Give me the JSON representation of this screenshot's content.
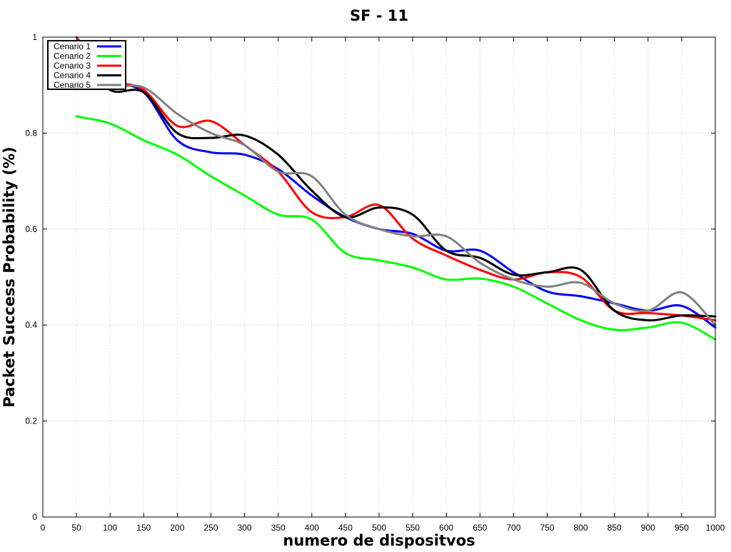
{
  "chart_data": {
    "type": "line",
    "title": "SF - 11",
    "xlabel": "numero de dispositvos",
    "ylabel": "Packet Success Probability (%)",
    "xlim": [
      0,
      1000
    ],
    "ylim": [
      0,
      1
    ],
    "xticks": [
      0,
      50,
      100,
      150,
      200,
      250,
      300,
      350,
      400,
      450,
      500,
      550,
      600,
      650,
      700,
      750,
      800,
      850,
      900,
      950,
      1000
    ],
    "yticks": [
      0,
      0.2,
      0.4,
      0.6,
      0.8,
      1
    ],
    "grid": true,
    "legend_position": "top-left",
    "x": [
      50,
      100,
      150,
      200,
      250,
      300,
      350,
      400,
      450,
      500,
      550,
      600,
      650,
      700,
      750,
      800,
      850,
      900,
      950,
      1000
    ],
    "series": [
      {
        "name": "Cenario 1",
        "color": "#0000ff",
        "values": [
          0.92,
          0.905,
          0.885,
          0.785,
          0.76,
          0.755,
          0.725,
          0.67,
          0.625,
          0.6,
          0.59,
          0.555,
          0.555,
          0.51,
          0.47,
          0.46,
          0.445,
          0.43,
          0.44,
          0.395
        ]
      },
      {
        "name": "Cenario 2",
        "color": "#00ff00",
        "values": [
          0.835,
          0.82,
          0.785,
          0.755,
          0.71,
          0.67,
          0.63,
          0.62,
          0.55,
          0.535,
          0.52,
          0.495,
          0.497,
          0.48,
          0.445,
          0.41,
          0.39,
          0.395,
          0.405,
          0.37
        ]
      },
      {
        "name": "Cenario 3",
        "color": "#ff0000",
        "values": [
          1.0,
          0.915,
          0.89,
          0.815,
          0.825,
          0.775,
          0.72,
          0.635,
          0.625,
          0.65,
          0.58,
          0.545,
          0.515,
          0.495,
          0.51,
          0.5,
          0.43,
          0.425,
          0.42,
          0.41
        ]
      },
      {
        "name": "Cenario 4",
        "color": "#000000",
        "values": [
          0.96,
          0.89,
          0.885,
          0.8,
          0.79,
          0.795,
          0.755,
          0.68,
          0.625,
          0.645,
          0.63,
          0.555,
          0.54,
          0.505,
          0.51,
          0.515,
          0.43,
          0.41,
          0.42,
          0.418
        ]
      },
      {
        "name": "Cenario 5",
        "color": "#808080",
        "values": [
          0.94,
          0.9,
          0.895,
          0.84,
          0.8,
          0.775,
          0.72,
          0.71,
          0.63,
          0.6,
          0.585,
          0.585,
          0.53,
          0.495,
          0.48,
          0.488,
          0.445,
          0.43,
          0.468,
          0.4
        ]
      }
    ]
  }
}
